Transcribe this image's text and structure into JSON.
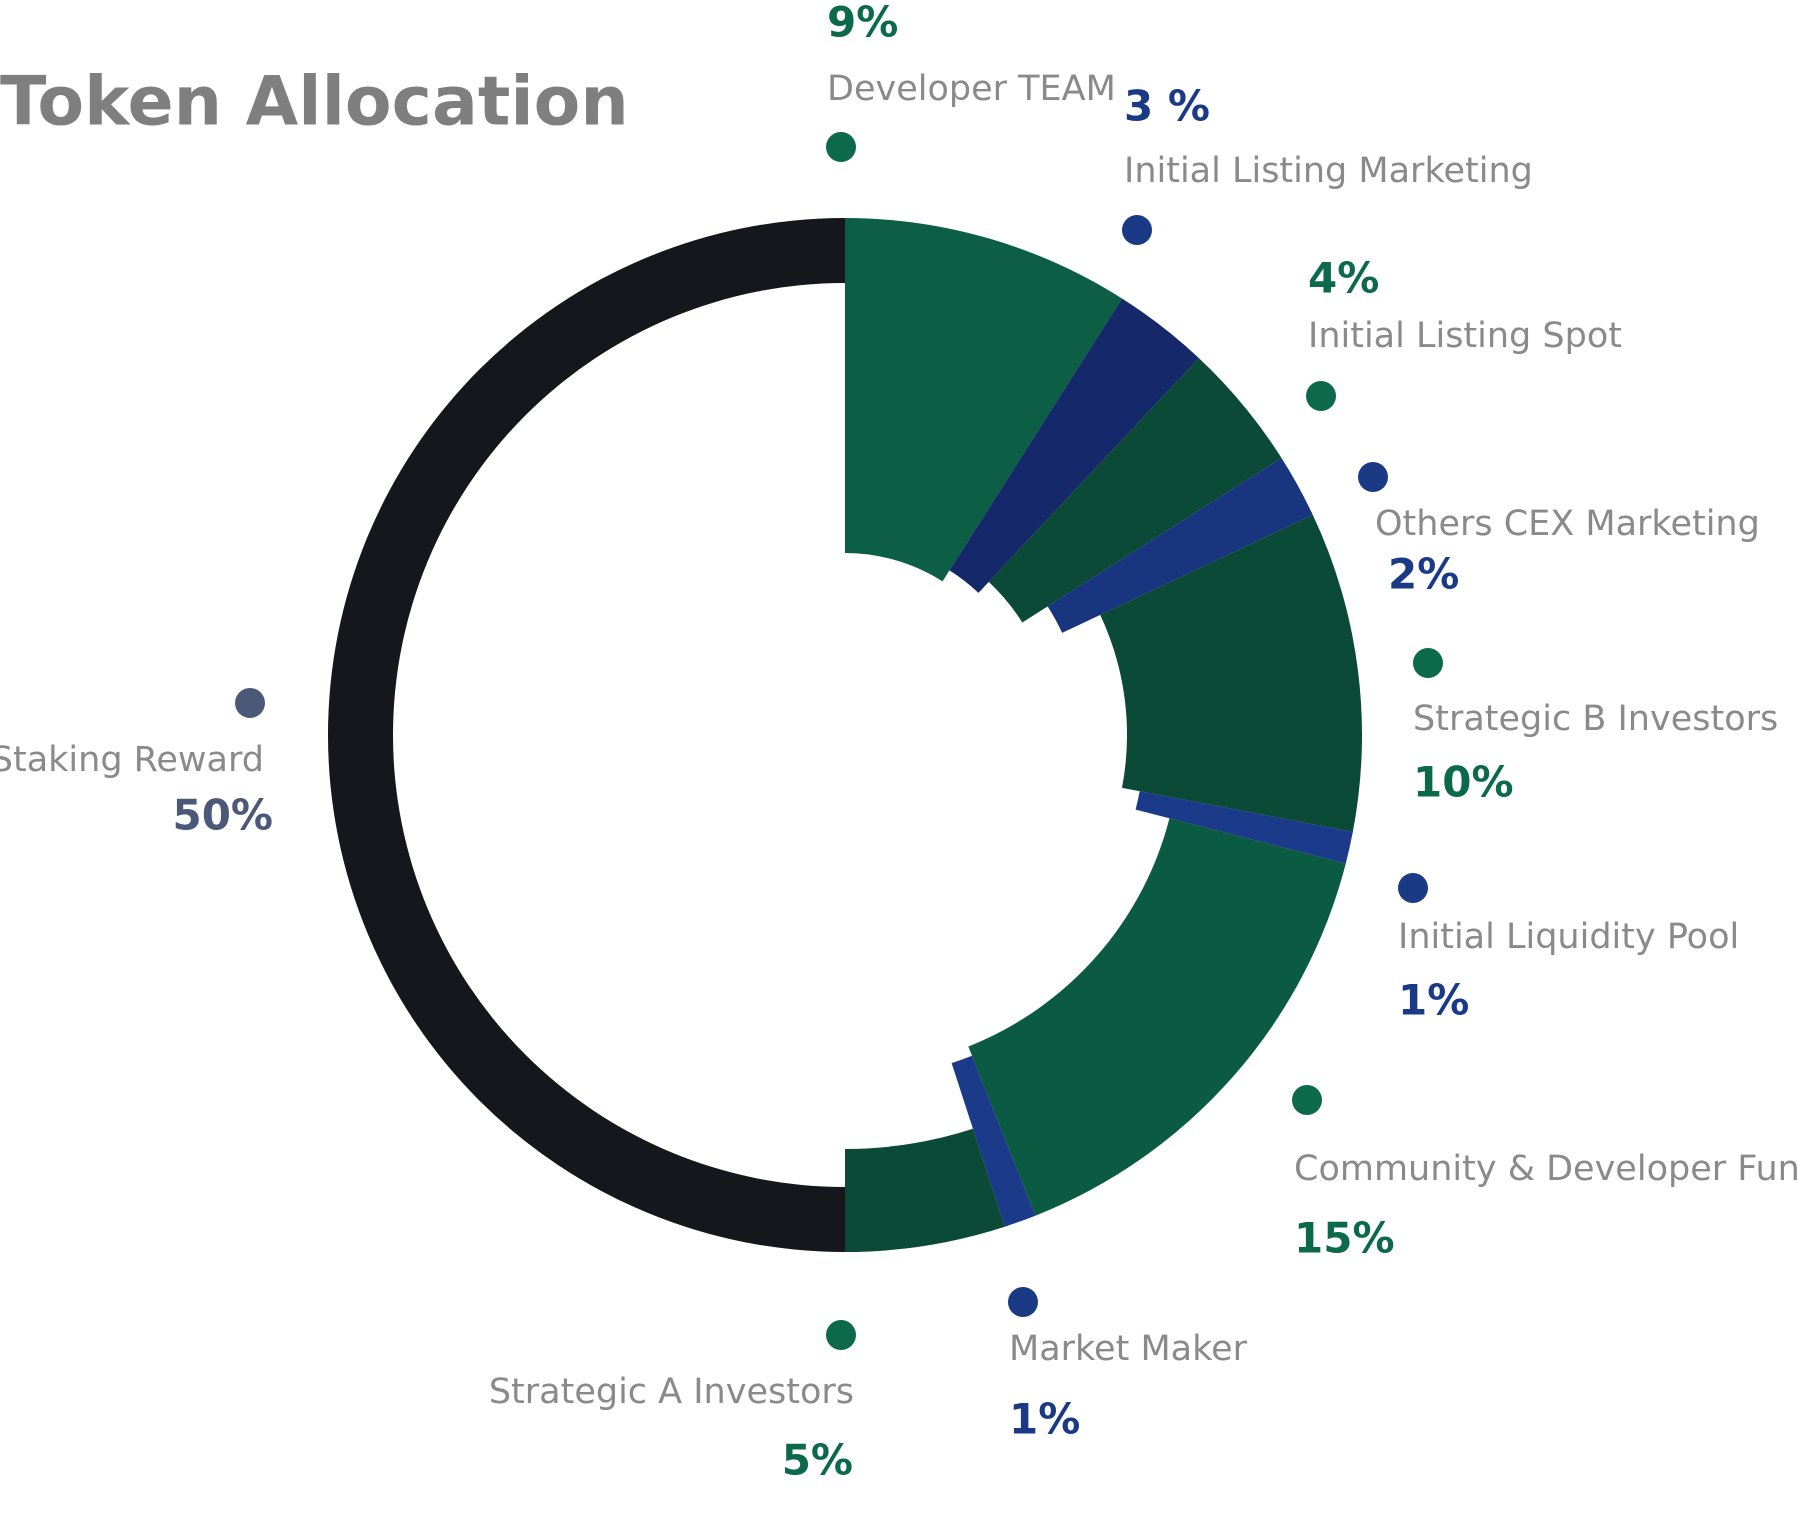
{
  "chart_data": {
    "type": "donut",
    "title": "Token Allocation",
    "categories": [
      "Developer TEAM",
      "Initial Listing Marketing",
      "Initial Listing Spot",
      "Others CEX Marketing",
      "Strategic B Investors",
      "Initial Liquidity Pool",
      "Community & Developer Fund",
      "Market Maker",
      "Strategic A Investors",
      "Staking Reward"
    ],
    "values": [
      9,
      3,
      4,
      2,
      10,
      1,
      15,
      1,
      5,
      50
    ],
    "value_labels": [
      "9%",
      "3 %",
      "4%",
      "2%",
      "10%",
      "1%",
      "15%",
      "1%",
      "5%",
      "50%"
    ],
    "colors": [
      "#0c5f45",
      "#15296a",
      "#0b4a36",
      "#1a3580",
      "#0a4a36",
      "#1c3a8a",
      "#0b5a42",
      "#1c3a8a",
      "#0a4a36",
      "#16171c"
    ],
    "label_colors": [
      "#0c6a4a",
      "#1b3a86",
      "#0c6a4a",
      "#1b3a86",
      "#0c6a4a",
      "#1b3a86",
      "#0c6a4a",
      "#1b3a86",
      "#0c6a4a",
      "#4b5878"
    ]
  }
}
